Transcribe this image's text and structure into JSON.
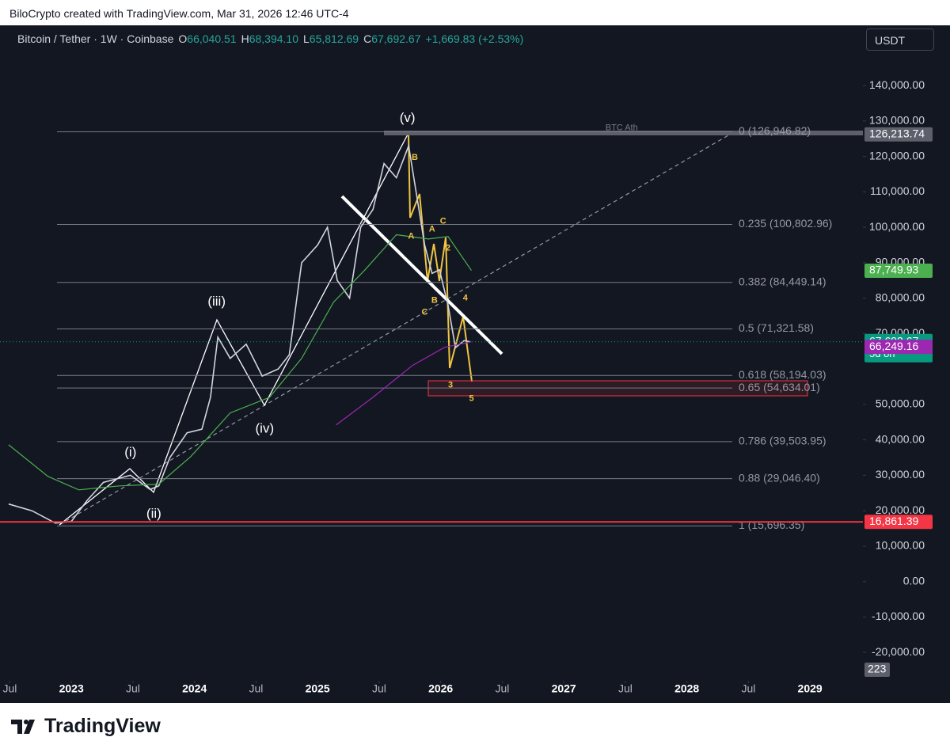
{
  "caption": "BiloCrypto created with TradingView.com, Mar 31, 2026 12:46 UTC-4",
  "currency": "USDT",
  "brand": "TradingView",
  "chart_data": {
    "type": "line",
    "title": "Bitcoin / Tether · 1W · Coinbase",
    "ohlc": [
      {
        "key": "O",
        "text": "66,040.51"
      },
      {
        "key": "H",
        "text": "68,394.10"
      },
      {
        "key": "L",
        "text": "65,812.69"
      },
      {
        "key": "C",
        "text": "67,692.67"
      }
    ],
    "change": "+1,669.83 (+2.53%)",
    "xlim": [
      2022.42,
      2029.43
    ],
    "ylim": [
      -28000,
      157000
    ],
    "xticks": [
      {
        "value": 2022.5,
        "label": "Jul"
      },
      2023,
      {
        "value": 2023.5,
        "label": "Jul"
      },
      2024,
      {
        "value": 2024.5,
        "label": "Jul"
      },
      2025,
      {
        "value": 2025.5,
        "label": "Jul"
      },
      2026,
      {
        "value": 2026.5,
        "label": "Jul"
      },
      2027,
      {
        "value": 2027.5,
        "label": "Jul"
      },
      2028,
      {
        "value": 2028.5,
        "label": "Jul"
      },
      2029
    ],
    "yticks": [
      {
        "value": -20000,
        "label": "-20,000.00"
      },
      {
        "value": -10000,
        "label": "-10,000.00"
      },
      {
        "value": 0,
        "label": "0.00"
      },
      {
        "value": 10000,
        "label": "10,000.00"
      },
      {
        "value": 20000,
        "label": "20,000.00"
      },
      {
        "value": 30000,
        "label": "30,000.00"
      },
      {
        "value": 40000,
        "label": "40,000.00"
      },
      {
        "value": 50000,
        "label": "50,000.00"
      },
      {
        "value": 70000,
        "label": "70,000.00"
      },
      {
        "value": 80000,
        "label": "80,000.00"
      },
      {
        "value": 90000,
        "label": "90,000.00"
      },
      {
        "value": 100000,
        "label": "100,000.00"
      },
      {
        "value": 110000,
        "label": "110,000.00"
      },
      {
        "value": 120000,
        "label": "120,000.00"
      },
      {
        "value": 130000,
        "label": "130,000.00"
      },
      {
        "value": 140000,
        "label": "140,000.00"
      }
    ],
    "series": [
      {
        "color": "#d1d4dc",
        "x": [
          2022.49,
          2022.68,
          2022.87,
          2023.0,
          2023.13,
          2023.26,
          2023.48,
          2023.64,
          2023.71,
          2023.8,
          2023.94,
          2024.06,
          2024.13,
          2024.19,
          2024.29,
          2024.42,
          2024.55,
          2024.68,
          2024.77,
          2024.87,
          2025.0,
          2025.08,
          2025.16,
          2025.26,
          2025.35,
          2025.45,
          2025.54,
          2025.64,
          2025.74,
          2025.8,
          2025.87,
          2025.93,
          2025.99,
          2026.06,
          2026.12,
          2026.19,
          2026.24
        ],
        "values": [
          21900,
          20000,
          16500,
          17000,
          23000,
          28000,
          30000,
          26000,
          27000,
          35000,
          42000,
          43000,
          52000,
          69000,
          63000,
          67000,
          58000,
          60000,
          64000,
          90000,
          95000,
          100000,
          85000,
          80000,
          100000,
          105000,
          118000,
          114000,
          123000,
          110000,
          95000,
          87000,
          88000,
          78000,
          66000,
          68000,
          67692.67
        ]
      },
      {
        "color": "#4caf50",
        "x": [
          2022.49,
          2022.81,
          2023.06,
          2023.39,
          2023.71,
          2023.97,
          2024.29,
          2024.61,
          2024.87,
          2025.13,
          2025.38,
          2025.64,
          2025.9,
          2026.06,
          2026.25
        ],
        "values": [
          38600,
          29700,
          25900,
          27000,
          27500,
          35300,
          47600,
          52000,
          63000,
          78900,
          87800,
          97900,
          96700,
          97400,
          87800
        ]
      },
      {
        "color": "#9c27b0",
        "x": [
          2025.15,
          2025.45,
          2025.77,
          2026.03,
          2026.25
        ],
        "values": [
          44200,
          52000,
          61000,
          66100,
          67700
        ]
      }
    ],
    "fib_levels": [
      {
        "value": 126946.82,
        "label": "0 (126,946.82)"
      },
      {
        "value": 100802.96,
        "label": "0.235 (100,802.96)"
      },
      {
        "value": 84449.14,
        "label": "0.382 (84,449.14)"
      },
      {
        "value": 71321.58,
        "label": "0.5 (71,321.58)"
      },
      {
        "value": 58194.03,
        "label": "0.618 (58,194.03)"
      },
      {
        "value": 54634.01,
        "label": "0.65 (54,634.01)"
      },
      {
        "value": 39503.95,
        "label": "0.786 (39,503.95)"
      },
      {
        "value": 29046.4,
        "label": "0.88 (29,046.40)"
      },
      {
        "value": 15696.35,
        "label": "1 (15,696.35)"
      }
    ],
    "price_labels": [
      {
        "value": 126213.74,
        "label": "126,213.74",
        "color": "#5d606b"
      },
      {
        "value": 87749.93,
        "label": "87,749.93",
        "color": "#4caf50"
      },
      {
        "value": 67692.67,
        "label": "67,692.67",
        "color": "#089981",
        "countdown": "5d 8h"
      },
      {
        "value": 66249.16,
        "label": "66,249.16",
        "color": "#9c27b0"
      },
      {
        "value": 16861.39,
        "label": "16,861.39",
        "color": "#f23645"
      }
    ],
    "volume_label": "223",
    "annotations": [
      {
        "text": "(i)",
        "x": 2023.48,
        "y": 36400,
        "color": "#ffffff"
      },
      {
        "text": "(ii)",
        "x": 2023.67,
        "y": 19000,
        "color": "#ffffff"
      },
      {
        "text": "(iii)",
        "x": 2024.18,
        "y": 78900,
        "color": "#ffffff"
      },
      {
        "text": "(iv)",
        "x": 2024.57,
        "y": 43100,
        "color": "#ffffff"
      },
      {
        "text": "(v)",
        "x": 2025.73,
        "y": 130700,
        "color": "#ffffff"
      },
      {
        "text": "BTC Ath",
        "x": 2027.47,
        "y": 128000,
        "color": "#787b86"
      },
      {
        "text": "B",
        "x": 2025.79,
        "y": 119700,
        "color": "#f0c541"
      },
      {
        "text": "A",
        "x": 2025.76,
        "y": 97400,
        "color": "#f0c541"
      },
      {
        "text": "A",
        "x": 2025.93,
        "y": 99400,
        "color": "#f0c541"
      },
      {
        "text": "C",
        "x": 2026.02,
        "y": 101700,
        "color": "#f0c541"
      },
      {
        "text": "2",
        "x": 2026.06,
        "y": 94100,
        "color": "#f0c541"
      },
      {
        "text": "B",
        "x": 2025.95,
        "y": 79300,
        "color": "#f0c541"
      },
      {
        "text": "C",
        "x": 2025.87,
        "y": 76000,
        "color": "#f0c541"
      },
      {
        "text": "4",
        "x": 2026.2,
        "y": 80000,
        "color": "#f0c541"
      },
      {
        "text": "3",
        "x": 2026.08,
        "y": 55400,
        "color": "#f0c541"
      },
      {
        "text": "5",
        "x": 2026.25,
        "y": 51600,
        "color": "#f0c541"
      }
    ]
  }
}
